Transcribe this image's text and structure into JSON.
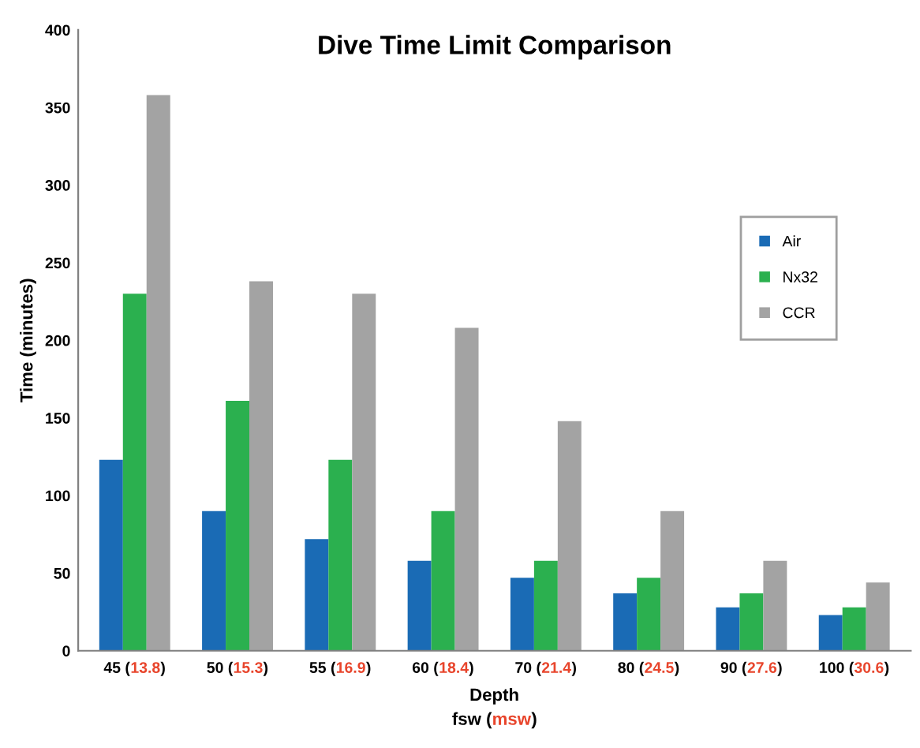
{
  "chart_data": {
    "type": "bar",
    "title": "Dive Time Limit Comparison",
    "xlabel": "Depth\nfsw (msw)",
    "ylabel": "Time (minutes)",
    "categories": [
      "45 (13.8)",
      "50 (15.3)",
      "55 (16.9)",
      "60 (18.4)",
      "70 (21.4)",
      "80 (24.5)",
      "90 (27.6)",
      "100 (30.6)"
    ],
    "series": [
      {
        "name": "Air",
        "color": "#1a6bb5",
        "values": [
          123,
          90,
          72,
          58,
          47,
          37,
          28,
          23
        ]
      },
      {
        "name": "Nx32",
        "color": "#2bb04f",
        "values": [
          230,
          161,
          123,
          90,
          58,
          47,
          37,
          28
        ]
      },
      {
        "name": "CCR",
        "color": "#a3a3a3",
        "values": [
          358,
          238,
          230,
          208,
          148,
          90,
          58,
          44
        ]
      }
    ],
    "ylim": [
      0,
      400
    ],
    "yticks": [
      0,
      50,
      100,
      150,
      200,
      250,
      300,
      350,
      400
    ],
    "grid": false,
    "legend": "right"
  }
}
